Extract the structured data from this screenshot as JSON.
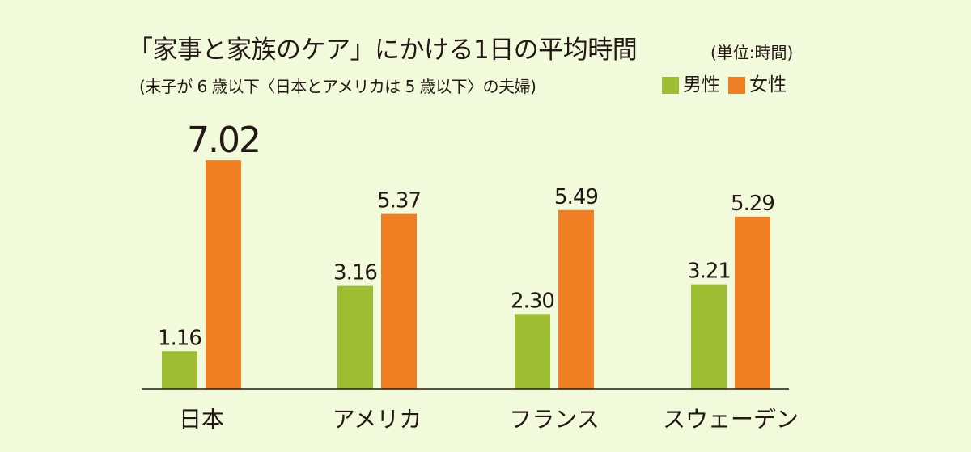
{
  "title": "「家事と家族のケア」にかける1日の平均時間",
  "unit_label": "(単位:時間)",
  "subtitle": "(末子が 6 歳以下〈日本とアメリカは 5 歳以下〉の夫婦)",
  "colors": {
    "background": "#f2fadc",
    "male": "#9dbe33",
    "female": "#ef7f22",
    "text": "#231815",
    "axis": "#231815"
  },
  "chart_data": {
    "type": "bar",
    "categories": [
      "日本",
      "アメリカ",
      "フランス",
      "スウェーデン"
    ],
    "series": [
      {
        "name": "男性",
        "values": [
          1.16,
          3.16,
          2.3,
          3.21
        ],
        "labels": [
          "1.16",
          "3.16",
          "2.30",
          "3.21"
        ]
      },
      {
        "name": "女性",
        "values": [
          7.02,
          5.37,
          5.49,
          5.29
        ],
        "labels": [
          "7.02",
          "5.37",
          "5.49",
          "5.29"
        ]
      }
    ],
    "highlight": {
      "series": 1,
      "category": 0
    },
    "ylim": [
      0,
      8
    ],
    "grid": false,
    "legend": "top-right"
  }
}
